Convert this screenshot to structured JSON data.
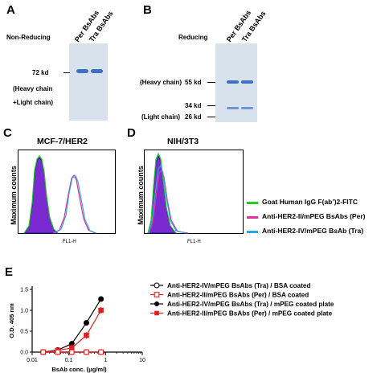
{
  "panels": {
    "A": {
      "letter": "A",
      "condition": "Non-Reducing",
      "lanes": [
        "Per BsAbs",
        "Tra BsAbs"
      ],
      "marker": "72 kd",
      "annotation_1": "(Heavy chain",
      "annotation_2": "+Light chain)"
    },
    "B": {
      "letter": "B",
      "condition": "Reducing",
      "lanes": [
        "Per BsAbs",
        "Tra BsAbs"
      ],
      "marker_heavy": "55 kd",
      "marker_heavy_label": "(Heavy chain)",
      "marker_34": "34 kd",
      "marker_light": "26 kd",
      "marker_light_label": "(Light chain)"
    },
    "C": {
      "letter": "C",
      "title": "MCF-7/HER2",
      "ylabel": "Maximum counts",
      "xlabel": "FL1-H"
    },
    "D": {
      "letter": "D",
      "title": "NIH/3T3",
      "ylabel": "Maximum counts",
      "xlabel": "FL1-H"
    },
    "E": {
      "letter": "E"
    }
  },
  "flow_legend": [
    {
      "label": "Goat Human IgG F(ab’)2-FITC",
      "color": "#22cc22"
    },
    {
      "label": "Anti-HER2-II/mPEG BsAbs (Per)",
      "color": "#e0309a"
    },
    {
      "label": "Anti-HER2-IV/mPEG BsAb (Tra)",
      "color": "#2aa6e8"
    }
  ],
  "chart_data": {
    "type": "line",
    "xlabel": "BsAb conc. (μg/ml)",
    "ylabel": "O.D. 405 nm",
    "xscale": "log",
    "xlim": [
      0.01,
      10
    ],
    "ylim": [
      0,
      1.5
    ],
    "xticks": [
      "0.01",
      "0.1",
      "1",
      "10"
    ],
    "yticks": [
      "0.0",
      "0.5",
      "1.0",
      "1.5"
    ],
    "x": [
      0.02,
      0.05,
      0.12,
      0.3,
      0.75
    ],
    "series": [
      {
        "name": "Anti-HER2-IV/mPEG BsAbs (Tra) / BSA coated",
        "color": "#000000",
        "marker": "open-circle",
        "values": [
          0.0,
          0.0,
          0.0,
          0.0,
          0.0
        ]
      },
      {
        "name": "Anti-HER2-II/mPEG BsAbs (Per) / BSA coated",
        "color": "#e02020",
        "marker": "open-square",
        "values": [
          0.0,
          0.0,
          0.0,
          0.0,
          0.0
        ]
      },
      {
        "name": "Anti-HER2-IV/mPEG BsAbs (Tra) / mPEG coated plate",
        "color": "#000000",
        "marker": "filled-circle",
        "values": [
          0.0,
          0.05,
          0.2,
          0.7,
          1.27
        ]
      },
      {
        "name": "Anti-HER2-II/mPEG BsAbs (Per) / mPEG coated plate",
        "color": "#e02020",
        "marker": "filled-square",
        "values": [
          0.0,
          0.04,
          0.1,
          0.4,
          1.0
        ]
      }
    ]
  }
}
